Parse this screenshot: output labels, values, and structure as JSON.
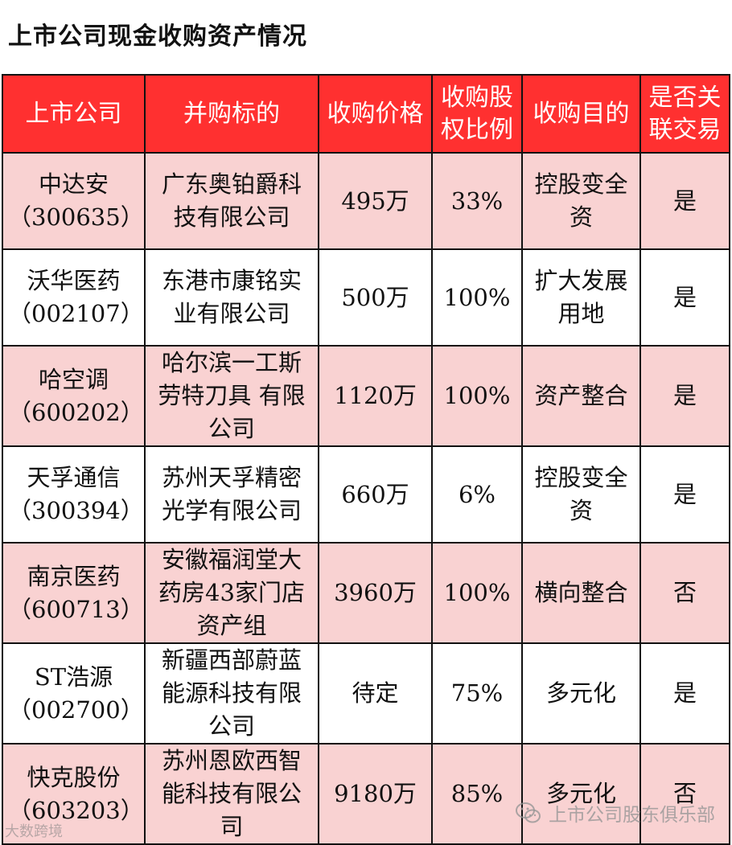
{
  "title": "上市公司现金收购资产情况",
  "table": {
    "headers": [
      "上市公司",
      "并购标的",
      "收购价格",
      "收购股权比例",
      "收购目的",
      "是否关联交易"
    ],
    "rows": [
      {
        "company": "中达安",
        "code": "（300635）",
        "target": "广东奥铂爵科技有限公司",
        "price": "495万",
        "ratio": "33%",
        "purpose": "控股变全资",
        "related": "是"
      },
      {
        "company": "沃华医药",
        "code": "（002107）",
        "target": "东港市康铭实业有限公司",
        "price": "500万",
        "ratio": "100%",
        "purpose": "扩大发展用地",
        "related": "是"
      },
      {
        "company": "哈空调",
        "code": "（600202）",
        "target": "哈尔滨一工斯劳特刀具 有限公司",
        "price": "1120万",
        "ratio": "100%",
        "purpose": "资产整合",
        "related": "是"
      },
      {
        "company": "天孚通信",
        "code": "（300394）",
        "target": "苏州天孚精密光学有限公司",
        "price": "660万",
        "ratio": "6%",
        "purpose": "控股变全资",
        "related": "是"
      },
      {
        "company": "南京医药",
        "code": "（600713）",
        "target": "安徽福润堂大药房43家门店资产组",
        "price": "3960万",
        "ratio": "100%",
        "purpose": "横向整合",
        "related": "否"
      },
      {
        "company": "ST浩源",
        "code": "（002700）",
        "target": "新疆西部蔚蓝能源科技有限公司",
        "price": "待定",
        "ratio": "75%",
        "purpose": "多元化",
        "related": "是"
      },
      {
        "company": "快克股份",
        "code": "（603203）",
        "target": "苏州恩欧西智能科技有限公司",
        "price": "9180万",
        "ratio": "85%",
        "purpose": "多元化",
        "related": "否"
      }
    ]
  },
  "watermark": {
    "left": "大数跨境",
    "right": "上市公司股东俱乐部",
    "right_icon": "wechat-icon"
  }
}
